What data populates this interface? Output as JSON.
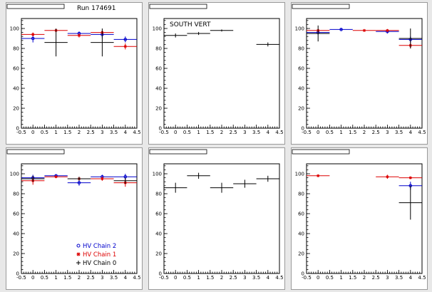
{
  "run_label": "Run 174691",
  "colors": {
    "HV Chain 2": "#0000cc",
    "HV Chain 1": "#dd0000",
    "HV Chain 0": "#000000"
  },
  "legend": {
    "panel": 4,
    "entries": [
      {
        "label": "HV Chain 2",
        "marker": "circle",
        "color": "#0000cc"
      },
      {
        "label": "HV Chain 1",
        "marker": "star",
        "color": "#dd0000"
      },
      {
        "label": "HV Chain 0",
        "marker": "cross",
        "color": "#000000"
      }
    ]
  },
  "chart_data": [
    {
      "type": "scatter",
      "title": "",
      "annotation": "Run 174691",
      "xlim": [
        -0.5,
        4.5
      ],
      "ylim": [
        0,
        110
      ],
      "x_ticks": [
        "-0.5",
        "0",
        "0.5",
        "1",
        "1.5",
        "2",
        "2.5",
        "3",
        "3.5",
        "4",
        "4.5"
      ],
      "y_ticks": [
        "0",
        "20",
        "40",
        "60",
        "80",
        "100"
      ],
      "series": [
        {
          "name": "HV Chain 2",
          "marker": "circle",
          "points": [
            {
              "x": 0,
              "y": 90,
              "xerr": 0.5,
              "yerr": 4
            },
            {
              "x": 2,
              "y": 95,
              "xerr": 0.5,
              "yerr": 2
            },
            {
              "x": 3,
              "y": 94,
              "xerr": 0.5,
              "yerr": 4
            },
            {
              "x": 4,
              "y": 89,
              "xerr": 0.5,
              "yerr": 3
            }
          ]
        },
        {
          "name": "HV Chain 1",
          "marker": "star",
          "points": [
            {
              "x": 0,
              "y": 94,
              "xerr": 0.5,
              "yerr": 2
            },
            {
              "x": 1,
              "y": 98,
              "xerr": 0.5,
              "yerr": 1
            },
            {
              "x": 2,
              "y": 93,
              "xerr": 0.5,
              "yerr": 2
            },
            {
              "x": 3,
              "y": 96,
              "xerr": 0.5,
              "yerr": 2
            },
            {
              "x": 4,
              "y": 82,
              "xerr": 0.5,
              "yerr": 3
            }
          ]
        },
        {
          "name": "HV Chain 0",
          "marker": "cross",
          "points": [
            {
              "x": 1,
              "y": 86,
              "xerr": 0.5,
              "yerr": 14
            },
            {
              "x": 3,
              "y": 86,
              "xerr": 0.5,
              "yerr": 14
            }
          ]
        }
      ]
    },
    {
      "type": "scatter",
      "title": "",
      "annotation": "SOUTH VERT",
      "xlim": [
        -0.5,
        4.5
      ],
      "ylim": [
        0,
        110
      ],
      "x_ticks": [
        "-0.5",
        "0",
        "0.5",
        "1",
        "1.5",
        "2",
        "2.5",
        "3",
        "3.5",
        "4",
        "4.5"
      ],
      "y_ticks": [
        "0",
        "20",
        "40",
        "60",
        "80",
        "100"
      ],
      "series": [
        {
          "name": "HV Chain 0",
          "marker": "cross",
          "points": [
            {
              "x": 0,
              "y": 93,
              "xerr": 0.5,
              "yerr": 2
            },
            {
              "x": 1,
              "y": 95,
              "xerr": 0.5,
              "yerr": 1.5
            },
            {
              "x": 2,
              "y": 98,
              "xerr": 0.5,
              "yerr": 1
            },
            {
              "x": 4,
              "y": 84,
              "xerr": 0.5,
              "yerr": 2
            }
          ]
        }
      ]
    },
    {
      "type": "scatter",
      "title": "",
      "annotation": "",
      "xlim": [
        -0.5,
        4.5
      ],
      "ylim": [
        0,
        110
      ],
      "x_ticks": [
        "-0.5",
        "0",
        "0.5",
        "1",
        "1.5",
        "2",
        "2.5",
        "3",
        "3.5",
        "4",
        "4.5"
      ],
      "y_ticks": [
        "0",
        "20",
        "40",
        "60",
        "80",
        "100"
      ],
      "series": [
        {
          "name": "HV Chain 2",
          "marker": "circle",
          "points": [
            {
              "x": 0,
              "y": 96,
              "xerr": 0.5,
              "yerr": 2
            },
            {
              "x": 1,
              "y": 99,
              "xerr": 0.5,
              "yerr": 1
            },
            {
              "x": 3,
              "y": 97,
              "xerr": 0.5,
              "yerr": 2
            },
            {
              "x": 4,
              "y": 89,
              "xerr": 0.5,
              "yerr": 3
            }
          ]
        },
        {
          "name": "HV Chain 1",
          "marker": "star",
          "points": [
            {
              "x": 0,
              "y": 98,
              "xerr": 0.5,
              "yerr": 1
            },
            {
              "x": 2,
              "y": 98,
              "xerr": 0.5,
              "yerr": 1
            },
            {
              "x": 3,
              "y": 98,
              "xerr": 0.5,
              "yerr": 1
            },
            {
              "x": 4,
              "y": 83,
              "xerr": 0.5,
              "yerr": 3
            }
          ]
        },
        {
          "name": "HV Chain 0",
          "marker": "cross",
          "points": [
            {
              "x": 0,
              "y": 95,
              "xerr": 0.5,
              "yerr": 8
            },
            {
              "x": 4,
              "y": 90,
              "xerr": 0.5,
              "yerr": 10
            }
          ]
        }
      ]
    },
    {
      "type": "scatter",
      "title": "",
      "annotation": "",
      "xlim": [
        -0.5,
        4.5
      ],
      "ylim": [
        0,
        110
      ],
      "x_ticks": [
        "-0.5",
        "0",
        "0.5",
        "1",
        "1.5",
        "2",
        "2.5",
        "3",
        "3.5",
        "4",
        "4.5"
      ],
      "y_ticks": [
        "0",
        "20",
        "40",
        "60",
        "80",
        "100"
      ],
      "series": [
        {
          "name": "HV Chain 2",
          "marker": "circle",
          "points": [
            {
              "x": 0,
              "y": 96,
              "xerr": 0.5,
              "yerr": 3
            },
            {
              "x": 1,
              "y": 98,
              "xerr": 0.5,
              "yerr": 1
            },
            {
              "x": 2,
              "y": 91,
              "xerr": 0.5,
              "yerr": 3
            },
            {
              "x": 3,
              "y": 97,
              "xerr": 0.5,
              "yerr": 2
            },
            {
              "x": 4,
              "y": 97,
              "xerr": 0.5,
              "yerr": 3
            }
          ]
        },
        {
          "name": "HV Chain 1",
          "marker": "star",
          "points": [
            {
              "x": 0,
              "y": 93,
              "xerr": 0.5,
              "yerr": 4
            },
            {
              "x": 1,
              "y": 97,
              "xerr": 0.5,
              "yerr": 1
            },
            {
              "x": 2,
              "y": 95,
              "xerr": 0.5,
              "yerr": 2
            },
            {
              "x": 3,
              "y": 95,
              "xerr": 0.5,
              "yerr": 2
            },
            {
              "x": 4,
              "y": 91,
              "xerr": 0.5,
              "yerr": 4
            }
          ]
        },
        {
          "name": "HV Chain 0",
          "marker": "cross",
          "points": [
            {
              "x": 0,
              "y": 95,
              "xerr": 0.5,
              "yerr": 3
            },
            {
              "x": 2,
              "y": 95,
              "xerr": 0.5,
              "yerr": 2
            },
            {
              "x": 4,
              "y": 93,
              "xerr": 0.5,
              "yerr": 3
            }
          ]
        }
      ]
    },
    {
      "type": "scatter",
      "title": "",
      "annotation": "",
      "xlim": [
        -0.5,
        4.5
      ],
      "ylim": [
        0,
        110
      ],
      "x_ticks": [
        "-0.5",
        "0",
        "0.5",
        "1",
        "1.5",
        "2",
        "2.5",
        "3",
        "3.5",
        "4",
        "4.5"
      ],
      "y_ticks": [
        "0",
        "20",
        "40",
        "60",
        "80",
        "100"
      ],
      "series": [
        {
          "name": "HV Chain 0",
          "marker": "cross",
          "points": [
            {
              "x": 0,
              "y": 86,
              "xerr": 0.5,
              "yerr": 5
            },
            {
              "x": 1,
              "y": 98,
              "xerr": 0.5,
              "yerr": 3
            },
            {
              "x": 2,
              "y": 86,
              "xerr": 0.5,
              "yerr": 5
            },
            {
              "x": 3,
              "y": 90,
              "xerr": 0.5,
              "yerr": 4
            },
            {
              "x": 4,
              "y": 95,
              "xerr": 0.5,
              "yerr": 3
            }
          ]
        }
      ]
    },
    {
      "type": "scatter",
      "title": "",
      "annotation": "",
      "xlim": [
        -0.5,
        4.5
      ],
      "ylim": [
        0,
        110
      ],
      "x_ticks": [
        "-0.5",
        "0",
        "0.5",
        "1",
        "1.5",
        "2",
        "2.5",
        "3",
        "3.5",
        "4",
        "4.5"
      ],
      "y_ticks": [
        "0",
        "20",
        "40",
        "60",
        "80",
        "100"
      ],
      "series": [
        {
          "name": "HV Chain 2",
          "marker": "circle",
          "points": [
            {
              "x": 4,
              "y": 88,
              "xerr": 0.5,
              "yerr": 4
            }
          ]
        },
        {
          "name": "HV Chain 1",
          "marker": "star",
          "points": [
            {
              "x": 0,
              "y": 98,
              "xerr": 0.5,
              "yerr": 1
            },
            {
              "x": 3,
              "y": 97,
              "xerr": 0.5,
              "yerr": 2
            },
            {
              "x": 4,
              "y": 96,
              "xerr": 0.5,
              "yerr": 1
            }
          ]
        },
        {
          "name": "HV Chain 0",
          "marker": "cross",
          "points": [
            {
              "x": 4,
              "y": 71,
              "xerr": 0.5,
              "yerr": 17
            }
          ]
        }
      ]
    }
  ]
}
